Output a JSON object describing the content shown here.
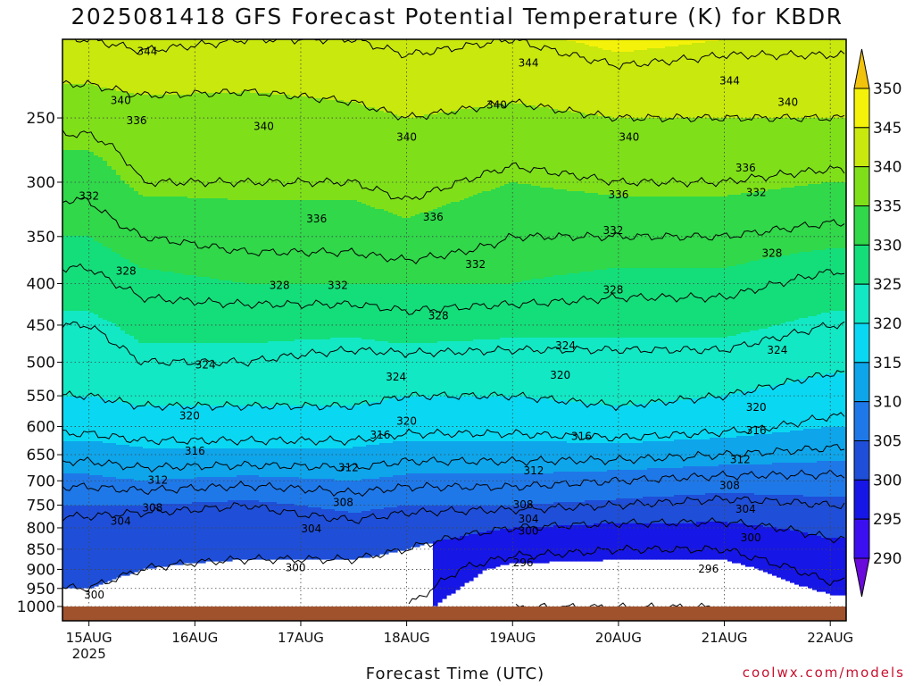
{
  "chart_data": {
    "type": "heatmap",
    "title": "2025081418 GFS Forecast Potential Temperature (K) for KBDR",
    "xlabel": "Forecast Time (UTC)",
    "ylabel": "",
    "x_ticks": [
      {
        "label": "15AUG",
        "sub": "2025",
        "day": 0
      },
      {
        "label": "16AUG",
        "sub": "",
        "day": 1
      },
      {
        "label": "17AUG",
        "sub": "",
        "day": 2
      },
      {
        "label": "18AUG",
        "sub": "",
        "day": 3
      },
      {
        "label": "19AUG",
        "sub": "",
        "day": 4
      },
      {
        "label": "20AUG",
        "sub": "",
        "day": 5
      },
      {
        "label": "21AUG",
        "sub": "",
        "day": 6
      },
      {
        "label": "22AUG",
        "sub": "",
        "day": 7
      }
    ],
    "xlim_days": [
      -0.25,
      7.15
    ],
    "pressure_ticks": [
      250,
      300,
      350,
      400,
      450,
      500,
      550,
      600,
      650,
      700,
      750,
      800,
      850,
      900,
      950,
      1000
    ],
    "ylim_hPa": [
      200,
      1000
    ],
    "y_scale": "log-pressure",
    "grid": true,
    "colorbar": {
      "levels": [
        290,
        295,
        300,
        305,
        310,
        315,
        320,
        325,
        330,
        335,
        340,
        345,
        350
      ],
      "tick_labels": [
        "290",
        "295",
        "300",
        "305",
        "310",
        "315",
        "320",
        "325",
        "330",
        "335",
        "340",
        "345",
        "350"
      ],
      "colors": [
        "#6a0adb",
        "#3b0ff0",
        "#1616e6",
        "#1f4fd8",
        "#1f78e8",
        "#0ea5ea",
        "#0ad8f2",
        "#12e8c4",
        "#14de7a",
        "#30d84a",
        "#7fe01a",
        "#c8e80e",
        "#f4f20a",
        "#f2c30c"
      ],
      "placement": "right"
    },
    "contour_profiles": [
      {
        "day": 0.0,
        "p": [
          [
            1000,
            299
          ],
          [
            900,
            301
          ],
          [
            850,
            302
          ],
          [
            800,
            303
          ],
          [
            750,
            305
          ],
          [
            700,
            309
          ],
          [
            650,
            313
          ],
          [
            600,
            317
          ],
          [
            550,
            320
          ],
          [
            500,
            322
          ],
          [
            450,
            324
          ],
          [
            400,
            327
          ],
          [
            350,
            330
          ],
          [
            300,
            333
          ],
          [
            250,
            337
          ],
          [
            200,
            344
          ]
        ]
      },
      {
        "day": 0.5,
        "p": [
          [
            1000,
            298
          ],
          [
            900,
            300
          ],
          [
            850,
            301
          ],
          [
            800,
            302
          ],
          [
            750,
            305
          ],
          [
            700,
            310
          ],
          [
            650,
            314
          ],
          [
            600,
            318
          ],
          [
            550,
            321
          ],
          [
            500,
            324
          ],
          [
            450,
            326
          ],
          [
            400,
            329
          ],
          [
            350,
            332
          ],
          [
            300,
            336
          ],
          [
            250,
            338
          ],
          [
            200,
            345
          ]
        ]
      },
      {
        "day": 1.5,
        "p": [
          [
            1000,
            297
          ],
          [
            900,
            299
          ],
          [
            850,
            301
          ],
          [
            800,
            302
          ],
          [
            750,
            304
          ],
          [
            700,
            309
          ],
          [
            650,
            314
          ],
          [
            600,
            318
          ],
          [
            550,
            321
          ],
          [
            500,
            324
          ],
          [
            450,
            326
          ],
          [
            400,
            330
          ],
          [
            350,
            333
          ],
          [
            300,
            336
          ],
          [
            250,
            338
          ],
          [
            200,
            344
          ]
        ]
      },
      {
        "day": 2.5,
        "p": [
          [
            1000,
            297
          ],
          [
            900,
            299
          ],
          [
            850,
            301
          ],
          [
            800,
            303
          ],
          [
            750,
            306
          ],
          [
            700,
            310
          ],
          [
            650,
            314
          ],
          [
            600,
            318
          ],
          [
            550,
            321
          ],
          [
            500,
            323
          ],
          [
            450,
            326
          ],
          [
            400,
            330
          ],
          [
            350,
            333
          ],
          [
            300,
            336
          ],
          [
            250,
            339
          ],
          [
            200,
            344
          ]
        ]
      },
      {
        "day": 3.0,
        "p": [
          [
            1000,
            296
          ],
          [
            900,
            298
          ],
          [
            850,
            300
          ],
          [
            800,
            302
          ],
          [
            750,
            305
          ],
          [
            700,
            309
          ],
          [
            650,
            313
          ],
          [
            600,
            317
          ],
          [
            550,
            320
          ],
          [
            500,
            323
          ],
          [
            450,
            327
          ],
          [
            400,
            330
          ],
          [
            350,
            334
          ],
          [
            300,
            337
          ],
          [
            250,
            340
          ],
          [
            200,
            345
          ]
        ]
      },
      {
        "day": 4.0,
        "p": [
          [
            1000,
            292
          ],
          [
            900,
            294
          ],
          [
            850,
            297
          ],
          [
            800,
            300
          ],
          [
            750,
            305
          ],
          [
            700,
            309
          ],
          [
            650,
            313
          ],
          [
            600,
            317
          ],
          [
            550,
            320
          ],
          [
            500,
            323
          ],
          [
            450,
            326
          ],
          [
            400,
            330
          ],
          [
            350,
            332
          ],
          [
            300,
            335
          ],
          [
            250,
            339
          ],
          [
            200,
            344
          ]
        ]
      },
      {
        "day": 5.0,
        "p": [
          [
            1000,
            292
          ],
          [
            900,
            294
          ],
          [
            850,
            296
          ],
          [
            800,
            299
          ],
          [
            750,
            304
          ],
          [
            700,
            308
          ],
          [
            650,
            313
          ],
          [
            600,
            318
          ],
          [
            550,
            321
          ],
          [
            500,
            323
          ],
          [
            450,
            326
          ],
          [
            400,
            329
          ],
          [
            350,
            332
          ],
          [
            300,
            336
          ],
          [
            250,
            340
          ],
          [
            200,
            346
          ]
        ]
      },
      {
        "day": 6.0,
        "p": [
          [
            1000,
            292
          ],
          [
            900,
            294
          ],
          [
            850,
            296
          ],
          [
            800,
            299
          ],
          [
            750,
            303
          ],
          [
            700,
            307
          ],
          [
            650,
            312
          ],
          [
            600,
            317
          ],
          [
            550,
            320
          ],
          [
            500,
            323
          ],
          [
            450,
            326
          ],
          [
            400,
            329
          ],
          [
            350,
            332
          ],
          [
            300,
            336
          ],
          [
            250,
            340
          ],
          [
            200,
            345
          ]
        ]
      },
      {
        "day": 7.0,
        "p": [
          [
            1000,
            294
          ],
          [
            900,
            297
          ],
          [
            850,
            299
          ],
          [
            800,
            301
          ],
          [
            750,
            304
          ],
          [
            700,
            307
          ],
          [
            650,
            311
          ],
          [
            600,
            315
          ],
          [
            550,
            318
          ],
          [
            500,
            321
          ],
          [
            450,
            324
          ],
          [
            400,
            327
          ],
          [
            350,
            331
          ],
          [
            300,
            335
          ],
          [
            250,
            340
          ],
          [
            200,
            345
          ]
        ]
      }
    ],
    "contour_labels": [
      {
        "text": "344",
        "day": 0.55,
        "p": 207
      },
      {
        "text": "340",
        "day": 0.3,
        "p": 238
      },
      {
        "text": "336",
        "day": 0.45,
        "p": 252
      },
      {
        "text": "332",
        "day": 0.0,
        "p": 312
      },
      {
        "text": "328",
        "day": 0.35,
        "p": 386
      },
      {
        "text": "340",
        "day": 1.65,
        "p": 256
      },
      {
        "text": "328",
        "day": 1.8,
        "p": 402
      },
      {
        "text": "324",
        "day": 1.1,
        "p": 504
      },
      {
        "text": "320",
        "day": 0.95,
        "p": 582
      },
      {
        "text": "316",
        "day": 1.0,
        "p": 643
      },
      {
        "text": "312",
        "day": 0.65,
        "p": 699
      },
      {
        "text": "308",
        "day": 0.6,
        "p": 756
      },
      {
        "text": "304",
        "day": 0.3,
        "p": 785
      },
      {
        "text": "300",
        "day": 0.05,
        "p": 967
      },
      {
        "text": "336",
        "day": 2.15,
        "p": 333
      },
      {
        "text": "332",
        "day": 2.35,
        "p": 402
      },
      {
        "text": "340",
        "day": 3.0,
        "p": 264
      },
      {
        "text": "336",
        "day": 3.25,
        "p": 331
      },
      {
        "text": "332",
        "day": 3.65,
        "p": 379
      },
      {
        "text": "328",
        "day": 3.3,
        "p": 438
      },
      {
        "text": "324",
        "day": 2.9,
        "p": 521
      },
      {
        "text": "320",
        "day": 3.0,
        "p": 591
      },
      {
        "text": "316",
        "day": 2.75,
        "p": 615
      },
      {
        "text": "312",
        "day": 2.45,
        "p": 674
      },
      {
        "text": "308",
        "day": 2.4,
        "p": 744
      },
      {
        "text": "304",
        "day": 2.1,
        "p": 802
      },
      {
        "text": "300",
        "day": 1.95,
        "p": 896
      },
      {
        "text": "344",
        "day": 4.15,
        "p": 214
      },
      {
        "text": "340",
        "day": 3.85,
        "p": 241
      },
      {
        "text": "336",
        "day": 5.0,
        "p": 311
      },
      {
        "text": "332",
        "day": 4.95,
        "p": 344
      },
      {
        "text": "328",
        "day": 4.95,
        "p": 407
      },
      {
        "text": "324",
        "day": 4.5,
        "p": 477
      },
      {
        "text": "320",
        "day": 4.45,
        "p": 519
      },
      {
        "text": "316",
        "day": 4.65,
        "p": 617
      },
      {
        "text": "312",
        "day": 4.2,
        "p": 680
      },
      {
        "text": "308",
        "day": 4.1,
        "p": 749
      },
      {
        "text": "304",
        "day": 4.15,
        "p": 780
      },
      {
        "text": "300",
        "day": 4.15,
        "p": 807
      },
      {
        "text": "296",
        "day": 4.1,
        "p": 883
      },
      {
        "text": "340",
        "day": 5.1,
        "p": 264
      },
      {
        "text": "344",
        "day": 6.05,
        "p": 225
      },
      {
        "text": "340",
        "day": 6.6,
        "p": 239
      },
      {
        "text": "336",
        "day": 6.2,
        "p": 288
      },
      {
        "text": "332",
        "day": 6.3,
        "p": 309
      },
      {
        "text": "328",
        "day": 6.45,
        "p": 367
      },
      {
        "text": "324",
        "day": 6.5,
        "p": 483
      },
      {
        "text": "320",
        "day": 6.3,
        "p": 568
      },
      {
        "text": "316",
        "day": 6.3,
        "p": 607
      },
      {
        "text": "312",
        "day": 6.15,
        "p": 659
      },
      {
        "text": "308",
        "day": 6.05,
        "p": 709
      },
      {
        "text": "304",
        "day": 6.2,
        "p": 759
      },
      {
        "text": "300",
        "day": 6.25,
        "p": 823
      },
      {
        "text": "296",
        "day": 5.85,
        "p": 899
      }
    ]
  },
  "credit": "coolwx.com/models"
}
